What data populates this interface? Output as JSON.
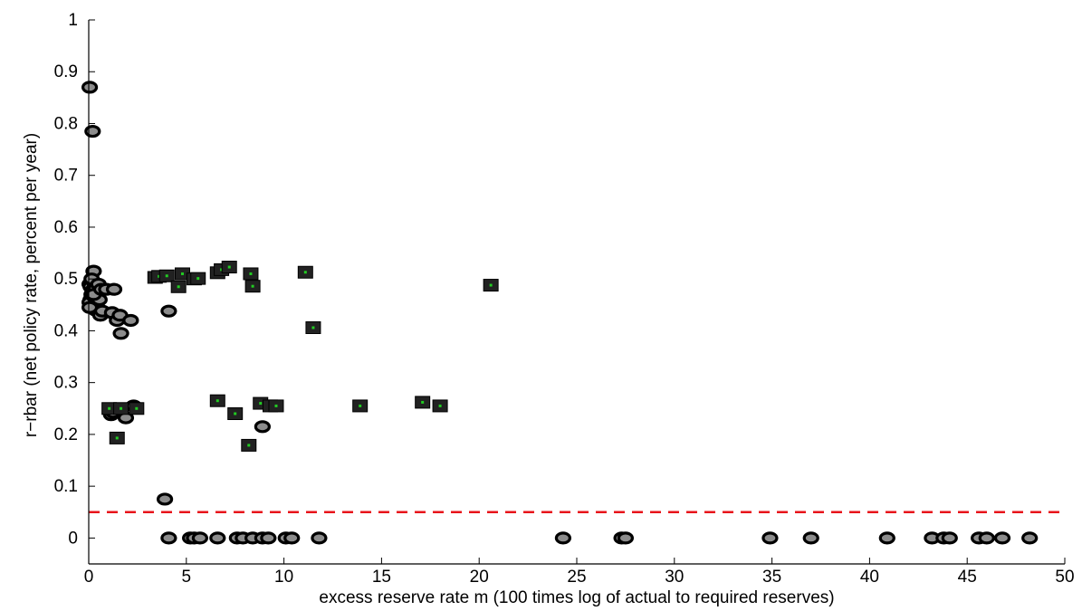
{
  "chart_data": {
    "type": "scatter",
    "title": "",
    "xlabel": "excess reserve rate m (100 times log of actual to required reserves)",
    "ylabel": "r−rbar (net policy rate, percent per year)",
    "xlim": [
      0,
      50
    ],
    "ylim": [
      -0.05,
      1
    ],
    "xticks": [
      0,
      5,
      10,
      15,
      20,
      25,
      30,
      35,
      40,
      45,
      50
    ],
    "yticks": [
      0,
      0.1,
      0.2,
      0.3,
      0.4,
      0.5,
      0.6,
      0.7,
      0.8,
      0.9,
      1
    ],
    "xtick_labels": [
      "0",
      "5",
      "10",
      "15",
      "20",
      "25",
      "30",
      "35",
      "40",
      "45",
      "50"
    ],
    "ytick_labels": [
      "0",
      "0.1",
      "0.2",
      "0.3",
      "0.4",
      "0.5",
      "0.6",
      "0.7",
      "0.8",
      "0.9",
      "1"
    ],
    "grid": false,
    "reference_line": {
      "y": 0.05,
      "style": "dashed",
      "color": "#e8141b"
    },
    "colors": {
      "circle_fill": "#8c8c8c",
      "circle_stroke": "#000000",
      "square_fill": "#222222",
      "square_dot": "#22cc22"
    },
    "series": [
      {
        "marker": "circle",
        "points": [
          [
            0.05,
            0.87
          ],
          [
            0.2,
            0.785
          ],
          [
            0.25,
            0.515
          ],
          [
            0.05,
            0.49
          ],
          [
            0.1,
            0.485
          ],
          [
            0.15,
            0.47
          ],
          [
            0.1,
            0.46
          ],
          [
            0.05,
            0.455
          ],
          [
            0.2,
            0.478
          ],
          [
            0.3,
            0.492
          ],
          [
            0.35,
            0.48
          ],
          [
            0.3,
            0.465
          ],
          [
            0.4,
            0.45
          ],
          [
            0.35,
            0.44
          ],
          [
            0.05,
            0.445
          ],
          [
            0.15,
            0.5
          ],
          [
            0.5,
            0.49
          ],
          [
            0.45,
            0.47
          ],
          [
            0.55,
            0.46
          ],
          [
            0.25,
            0.47
          ],
          [
            0.6,
            0.43
          ],
          [
            0.65,
            0.48
          ],
          [
            0.9,
            0.48
          ],
          [
            0.7,
            0.438
          ],
          [
            1.3,
            0.48
          ],
          [
            1.2,
            0.435
          ],
          [
            1.45,
            0.42
          ],
          [
            1.6,
            0.43
          ],
          [
            1.65,
            0.395
          ],
          [
            2.15,
            0.42
          ],
          [
            1.15,
            0.238
          ],
          [
            1.25,
            0.243
          ],
          [
            1.9,
            0.232
          ],
          [
            2.3,
            0.255
          ],
          [
            3.9,
            0.075
          ],
          [
            4.1,
            0.438
          ],
          [
            8.9,
            0.215
          ],
          [
            4.1,
            0
          ],
          [
            5.2,
            0
          ],
          [
            5.4,
            0
          ],
          [
            5.7,
            0
          ],
          [
            6.6,
            0
          ],
          [
            7.6,
            0
          ],
          [
            7.9,
            0
          ],
          [
            8.4,
            0
          ],
          [
            8.9,
            0
          ],
          [
            9.2,
            0
          ],
          [
            10.1,
            0
          ],
          [
            10.4,
            0
          ],
          [
            11.8,
            0
          ],
          [
            24.3,
            0
          ],
          [
            27.3,
            0
          ],
          [
            27.5,
            0
          ],
          [
            34.9,
            0
          ],
          [
            37.0,
            0
          ],
          [
            40.9,
            0
          ],
          [
            43.2,
            0
          ],
          [
            43.8,
            0
          ],
          [
            44.1,
            0
          ],
          [
            45.6,
            0
          ],
          [
            46.0,
            0
          ],
          [
            46.8,
            0
          ],
          [
            48.2,
            0
          ]
        ]
      },
      {
        "marker": "square",
        "points": [
          [
            1.05,
            0.25
          ],
          [
            1.65,
            0.25
          ],
          [
            2.45,
            0.25
          ],
          [
            1.45,
            0.193
          ],
          [
            3.4,
            0.503
          ],
          [
            3.6,
            0.505
          ],
          [
            4.0,
            0.506
          ],
          [
            4.6,
            0.485
          ],
          [
            4.8,
            0.51
          ],
          [
            5.4,
            0.5
          ],
          [
            5.6,
            0.501
          ],
          [
            6.6,
            0.512
          ],
          [
            6.8,
            0.518
          ],
          [
            7.2,
            0.523
          ],
          [
            8.3,
            0.51
          ],
          [
            8.4,
            0.486
          ],
          [
            11.1,
            0.513
          ],
          [
            11.5,
            0.406
          ],
          [
            20.6,
            0.488
          ],
          [
            6.6,
            0.265
          ],
          [
            7.5,
            0.24
          ],
          [
            8.2,
            0.179
          ],
          [
            8.8,
            0.26
          ],
          [
            9.3,
            0.255
          ],
          [
            9.6,
            0.255
          ],
          [
            13.9,
            0.255
          ],
          [
            17.1,
            0.262
          ],
          [
            18.0,
            0.255
          ]
        ]
      }
    ]
  }
}
